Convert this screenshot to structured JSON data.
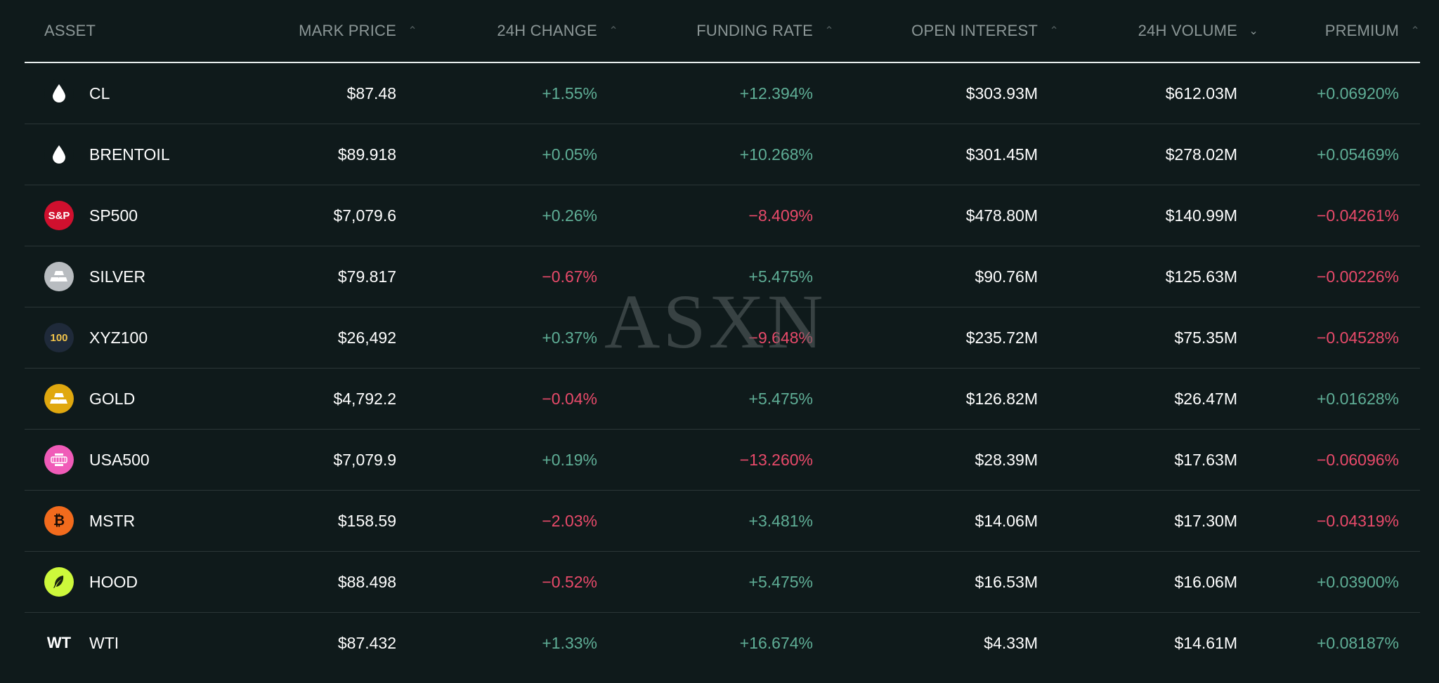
{
  "table": {
    "headers": {
      "asset": "ASSET",
      "mark_price": "MARK PRICE",
      "change_24h": "24H CHANGE",
      "funding_rate": "FUNDING RATE",
      "open_interest": "OPEN INTEREST",
      "volume_24h": "24H VOLUME",
      "premium": "PREMIUM"
    },
    "sort_indicators": {
      "mark_price": "⌃",
      "change_24h": "⌃",
      "funding_rate": "⌃",
      "open_interest": "⌃",
      "volume_24h": "⌄",
      "premium": "⌃"
    },
    "rows": [
      {
        "icon": "oil-drop-icon",
        "icon_text": "",
        "asset": "CL",
        "mark_price": "$87.48",
        "change_24h": "+1.55%",
        "funding_rate": "+12.394%",
        "open_interest": "$303.93M",
        "volume_24h": "$612.03M",
        "premium": "+0.06920%"
      },
      {
        "icon": "oil-drop-icon",
        "icon_text": "",
        "asset": "BRENTOIL",
        "mark_price": "$89.918",
        "change_24h": "+0.05%",
        "funding_rate": "+10.268%",
        "open_interest": "$301.45M",
        "volume_24h": "$278.02M",
        "premium": "+0.05469%"
      },
      {
        "icon": "sp-logo-icon",
        "icon_text": "S&P",
        "asset": "SP500",
        "mark_price": "$7,079.6",
        "change_24h": "+0.26%",
        "funding_rate": "-8.409%",
        "open_interest": "$478.80M",
        "volume_24h": "$140.99M",
        "premium": "-0.04261%"
      },
      {
        "icon": "silver-bars-icon",
        "icon_text": "",
        "asset": "SILVER",
        "mark_price": "$79.817",
        "change_24h": "-0.67%",
        "funding_rate": "+5.475%",
        "open_interest": "$90.76M",
        "volume_24h": "$125.63M",
        "premium": "-0.00226%"
      },
      {
        "icon": "xyz100-logo-icon",
        "icon_text": "100",
        "asset": "XYZ100",
        "mark_price": "$26,492",
        "change_24h": "+0.37%",
        "funding_rate": "-9.648%",
        "open_interest": "$235.72M",
        "volume_24h": "$75.35M",
        "premium": "-0.04528%"
      },
      {
        "icon": "gold-bars-icon",
        "icon_text": "",
        "asset": "GOLD",
        "mark_price": "$4,792.2",
        "change_24h": "-0.04%",
        "funding_rate": "+5.475%",
        "open_interest": "$126.82M",
        "volume_24h": "$26.47M",
        "premium": "+0.01628%"
      },
      {
        "icon": "usa500-logo-icon",
        "icon_text": "",
        "asset": "USA500",
        "mark_price": "$7,079.9",
        "change_24h": "+0.19%",
        "funding_rate": "-13.260%",
        "open_interest": "$28.39M",
        "volume_24h": "$17.63M",
        "premium": "-0.06096%"
      },
      {
        "icon": "bitcoin-icon",
        "icon_text": "₿",
        "asset": "MSTR",
        "mark_price": "$158.59",
        "change_24h": "-2.03%",
        "funding_rate": "+3.481%",
        "open_interest": "$14.06M",
        "volume_24h": "$17.30M",
        "premium": "-0.04319%"
      },
      {
        "icon": "feather-icon",
        "icon_text": "",
        "asset": "HOOD",
        "mark_price": "$88.498",
        "change_24h": "-0.52%",
        "funding_rate": "+5.475%",
        "open_interest": "$16.53M",
        "volume_24h": "$16.06M",
        "premium": "+0.03900%"
      },
      {
        "icon": "wti-logo-icon",
        "icon_text": "WT",
        "asset": "WTI",
        "mark_price": "$87.432",
        "change_24h": "+1.33%",
        "funding_rate": "+16.674%",
        "open_interest": "$4.33M",
        "volume_24h": "$14.61M",
        "premium": "+0.08187%"
      }
    ]
  },
  "watermark": "ASXN",
  "colors": {
    "background": "#0f1a1b",
    "positive": "#5fae96",
    "negative": "#e84a6a",
    "header_text": "#8c9797"
  }
}
